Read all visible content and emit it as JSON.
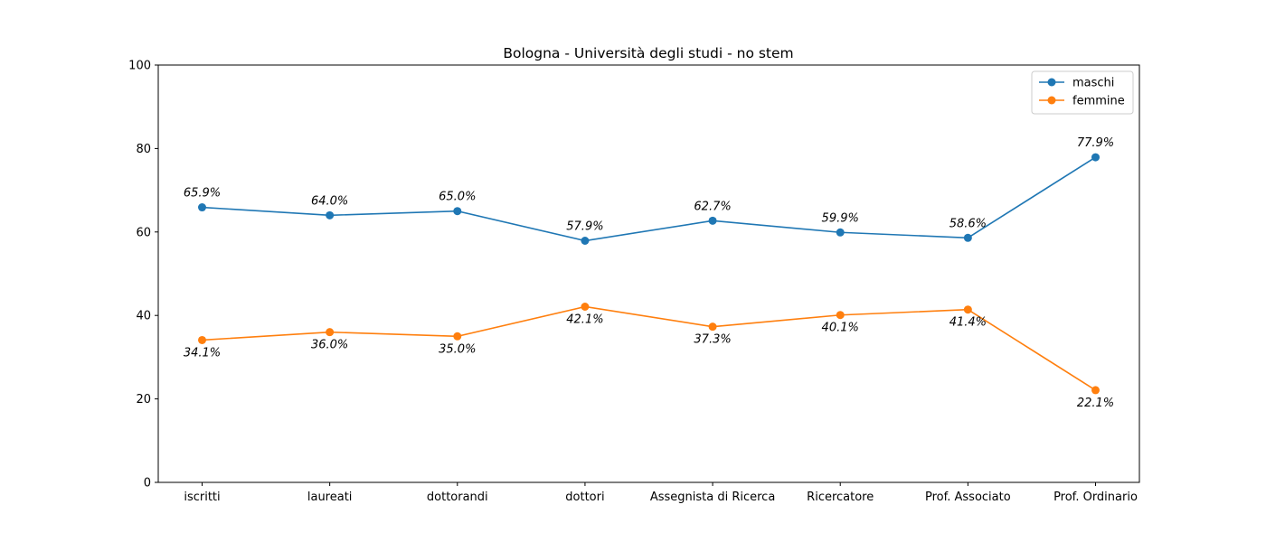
{
  "chart_data": {
    "type": "line",
    "title": "Bologna - Università degli studi - no stem",
    "xlabel": "",
    "ylabel": "",
    "categories": [
      "iscritti",
      "laureati",
      "dottorandi",
      "dottori",
      "Assegnista di Ricerca",
      "Ricercatore",
      "Prof. Associato",
      "Prof. Ordinario"
    ],
    "series": [
      {
        "name": "maschi",
        "color": "#1f77b4",
        "values": [
          65.9,
          64.0,
          65.0,
          57.9,
          62.7,
          59.9,
          58.6,
          77.9
        ],
        "labels": [
          "65.9%",
          "64.0%",
          "65.0%",
          "57.9%",
          "62.7%",
          "59.9%",
          "58.6%",
          "77.9%"
        ],
        "label_position": "above"
      },
      {
        "name": "femmine",
        "color": "#ff7f0e",
        "values": [
          34.1,
          36.0,
          35.0,
          42.1,
          37.3,
          40.1,
          41.4,
          22.1
        ],
        "labels": [
          "34.1%",
          "36.0%",
          "35.0%",
          "42.1%",
          "37.3%",
          "40.1%",
          "41.4%",
          "22.1%"
        ],
        "label_position": "below"
      }
    ],
    "ylim": [
      0,
      100
    ],
    "yticks": [
      0,
      20,
      40,
      60,
      80,
      100
    ],
    "ytick_labels": [
      "0",
      "20",
      "40",
      "60",
      "80",
      "100"
    ],
    "grid": false,
    "legend_position": "top-right"
  }
}
